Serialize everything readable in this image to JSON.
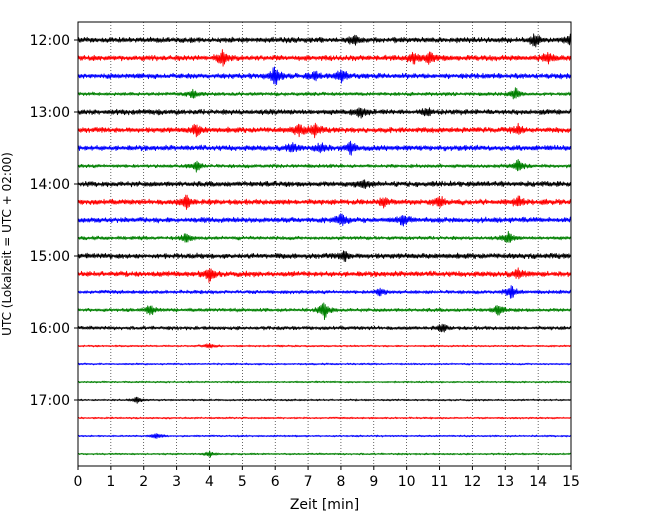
{
  "chart_data": {
    "type": "line",
    "title": "",
    "xlabel": "Zeit  [min]",
    "ylabel": "UTC (Lokalzeit = UTC + 02:00)",
    "x_ticks": [
      "0",
      "1",
      "2",
      "3",
      "4",
      "5",
      "6",
      "7",
      "8",
      "9",
      "10",
      "11",
      "12",
      "13",
      "14",
      "15"
    ],
    "xlim": [
      0,
      15
    ],
    "y_tick_labels": [
      "12:00",
      "13:00",
      "14:00",
      "15:00",
      "16:00",
      "17:00"
    ],
    "grid": "vertical dotted at each minute",
    "trace_interval_minutes": 15,
    "color_cycle": [
      "#000000",
      "#ff0000",
      "#0000ff",
      "#008000"
    ],
    "series": [
      {
        "start": "12:00",
        "color": "#000000",
        "amplitude": 3,
        "events": [
          {
            "t": 8.4,
            "a": 6
          },
          {
            "t": 13.9,
            "a": 6
          },
          {
            "t": 15.0,
            "a": 5
          }
        ]
      },
      {
        "start": "12:15",
        "color": "#ff0000",
        "amplitude": 3,
        "events": [
          {
            "t": 4.4,
            "a": 7
          },
          {
            "t": 10.2,
            "a": 5
          },
          {
            "t": 10.7,
            "a": 6
          },
          {
            "t": 14.3,
            "a": 5
          }
        ]
      },
      {
        "start": "12:30",
        "color": "#0000ff",
        "amplitude": 3,
        "events": [
          {
            "t": 6.0,
            "a": 10
          },
          {
            "t": 7.2,
            "a": 4
          },
          {
            "t": 8.0,
            "a": 7
          }
        ]
      },
      {
        "start": "12:45",
        "color": "#008000",
        "amplitude": 2,
        "events": [
          {
            "t": 3.5,
            "a": 4
          },
          {
            "t": 13.3,
            "a": 6
          }
        ]
      },
      {
        "start": "13:00",
        "color": "#000000",
        "amplitude": 3,
        "events": [
          {
            "t": 8.6,
            "a": 5
          },
          {
            "t": 10.6,
            "a": 4
          }
        ]
      },
      {
        "start": "13:15",
        "color": "#ff0000",
        "amplitude": 3,
        "events": [
          {
            "t": 3.6,
            "a": 6
          },
          {
            "t": 6.7,
            "a": 6
          },
          {
            "t": 7.2,
            "a": 7
          },
          {
            "t": 13.4,
            "a": 4
          }
        ]
      },
      {
        "start": "13:30",
        "color": "#0000ff",
        "amplitude": 3,
        "events": [
          {
            "t": 6.5,
            "a": 5
          },
          {
            "t": 7.4,
            "a": 5
          },
          {
            "t": 8.3,
            "a": 7
          }
        ]
      },
      {
        "start": "13:45",
        "color": "#008000",
        "amplitude": 2,
        "events": [
          {
            "t": 3.6,
            "a": 5
          },
          {
            "t": 13.4,
            "a": 7
          }
        ]
      },
      {
        "start": "14:00",
        "color": "#000000",
        "amplitude": 3,
        "events": [
          {
            "t": 8.7,
            "a": 4
          }
        ]
      },
      {
        "start": "14:15",
        "color": "#ff0000",
        "amplitude": 3,
        "events": [
          {
            "t": 3.3,
            "a": 7
          },
          {
            "t": 9.3,
            "a": 4
          },
          {
            "t": 11.0,
            "a": 6
          },
          {
            "t": 13.4,
            "a": 5
          }
        ]
      },
      {
        "start": "14:30",
        "color": "#0000ff",
        "amplitude": 3,
        "events": [
          {
            "t": 8.0,
            "a": 6
          },
          {
            "t": 9.9,
            "a": 5
          }
        ]
      },
      {
        "start": "14:45",
        "color": "#008000",
        "amplitude": 2,
        "events": [
          {
            "t": 3.3,
            "a": 5
          },
          {
            "t": 13.1,
            "a": 6
          }
        ]
      },
      {
        "start": "15:00",
        "color": "#000000",
        "amplitude": 3,
        "events": [
          {
            "t": 8.1,
            "a": 5
          }
        ]
      },
      {
        "start": "15:15",
        "color": "#ff0000",
        "amplitude": 3,
        "events": [
          {
            "t": 4.0,
            "a": 7
          },
          {
            "t": 13.4,
            "a": 5
          }
        ]
      },
      {
        "start": "15:30",
        "color": "#0000ff",
        "amplitude": 2,
        "events": [
          {
            "t": 9.2,
            "a": 4
          },
          {
            "t": 13.2,
            "a": 7
          }
        ]
      },
      {
        "start": "15:45",
        "color": "#008000",
        "amplitude": 2,
        "events": [
          {
            "t": 2.2,
            "a": 5
          },
          {
            "t": 7.5,
            "a": 9
          },
          {
            "t": 12.8,
            "a": 5
          }
        ]
      },
      {
        "start": "16:00",
        "color": "#000000",
        "amplitude": 2,
        "events": [
          {
            "t": 11.1,
            "a": 4
          }
        ]
      },
      {
        "start": "16:15",
        "color": "#ff0000",
        "amplitude": 1,
        "events": [
          {
            "t": 4.0,
            "a": 3
          }
        ]
      },
      {
        "start": "16:30",
        "color": "#0000ff",
        "amplitude": 1,
        "events": []
      },
      {
        "start": "16:45",
        "color": "#008000",
        "amplitude": 1,
        "events": []
      },
      {
        "start": "17:00",
        "color": "#000000",
        "amplitude": 1,
        "events": [
          {
            "t": 1.8,
            "a": 3
          }
        ]
      },
      {
        "start": "17:15",
        "color": "#ff0000",
        "amplitude": 1,
        "events": []
      },
      {
        "start": "17:30",
        "color": "#0000ff",
        "amplitude": 1,
        "events": [
          {
            "t": 2.4,
            "a": 3
          }
        ]
      },
      {
        "start": "17:45",
        "color": "#008000",
        "amplitude": 1,
        "events": [
          {
            "t": 4.0,
            "a": 3
          }
        ]
      }
    ]
  }
}
